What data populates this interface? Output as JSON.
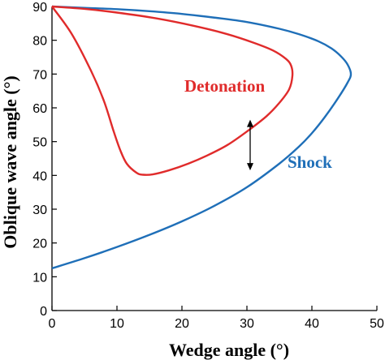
{
  "chart_data": {
    "type": "line",
    "title": "",
    "xlabel": "Wedge angle (°)",
    "ylabel": "Oblique wave angle (°)",
    "xlim": [
      0,
      50
    ],
    "ylim": [
      0,
      90
    ],
    "xticks": [
      0,
      10,
      20,
      30,
      40,
      50
    ],
    "yticks": [
      0,
      10,
      20,
      30,
      40,
      50,
      60,
      70,
      80,
      90
    ],
    "grid": false,
    "series": [
      {
        "name": "Shock",
        "color": "#1f6fb8",
        "x": [
          0,
          5,
          10,
          15,
          20,
          25,
          30,
          35,
          38,
          40,
          42,
          44,
          45.5,
          46,
          45.5,
          44.5,
          43,
          41,
          38,
          35,
          30,
          25,
          20,
          15,
          10,
          5,
          0
        ],
        "y": [
          12.5,
          15.5,
          18.8,
          22.4,
          26.4,
          31,
          36.5,
          43.5,
          48.5,
          52.5,
          57.3,
          62.8,
          67.5,
          70,
          72.8,
          75.2,
          77.6,
          79.7,
          81.8,
          83.4,
          85.4,
          86.7,
          87.8,
          88.6,
          89.2,
          89.6,
          90
        ]
      },
      {
        "name": "Detonation",
        "color": "#e02b2b",
        "x": [
          0,
          3,
          6,
          8,
          9.5,
          10.5,
          11.5,
          13,
          14,
          15.5,
          18,
          21,
          24,
          27,
          30,
          33,
          35,
          36.5,
          37,
          36.8,
          36,
          34,
          31,
          27,
          22,
          16,
          10,
          5,
          0
        ],
        "y": [
          90,
          82,
          71,
          62,
          53,
          47.5,
          43.5,
          40.8,
          40.2,
          40.3,
          41.5,
          43.5,
          46,
          49,
          53,
          57.5,
          61.5,
          65.5,
          69.5,
          72.5,
          74.5,
          77,
          79.3,
          81.8,
          84.2,
          86.5,
          88.2,
          89.3,
          90
        ]
      }
    ],
    "annotations": [
      {
        "type": "double-arrow",
        "x": 30.5,
        "y_from": 41.5,
        "y_to": 56.5
      }
    ],
    "labels": {
      "detonation": "Detonation",
      "shock": "Shock"
    }
  }
}
